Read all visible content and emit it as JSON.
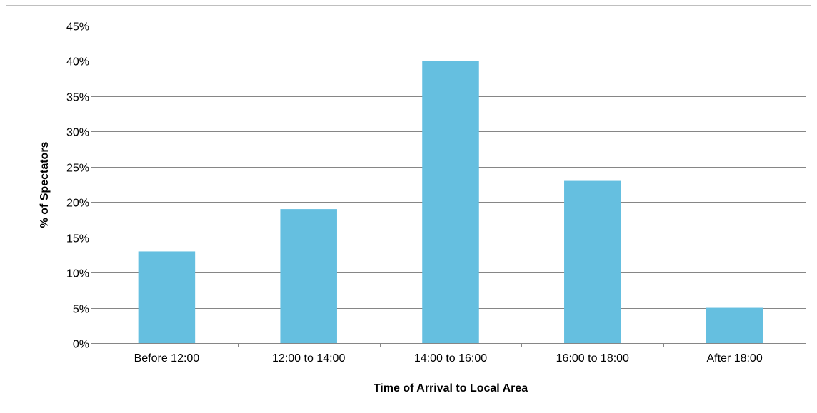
{
  "chart_data": {
    "type": "bar",
    "categories": [
      "Before 12:00",
      "12:00 to 14:00",
      "14:00 to 16:00",
      "16:00 to 18:00",
      "After 18:00"
    ],
    "values": [
      13,
      19,
      40,
      23,
      5
    ],
    "xlabel": "Time of Arrival to Local Area",
    "ylabel": "% of Spectators",
    "ylim": [
      0,
      45
    ],
    "yticks": [
      0,
      5,
      10,
      15,
      20,
      25,
      30,
      35,
      40,
      45
    ],
    "ytick_labels": [
      "0%",
      "5%",
      "10%",
      "15%",
      "20%",
      "25%",
      "30%",
      "35%",
      "40%",
      "45%"
    ],
    "grid": "horizontal",
    "legend": "none",
    "bar_color": "#65bfe0",
    "grid_color": "#868686"
  }
}
